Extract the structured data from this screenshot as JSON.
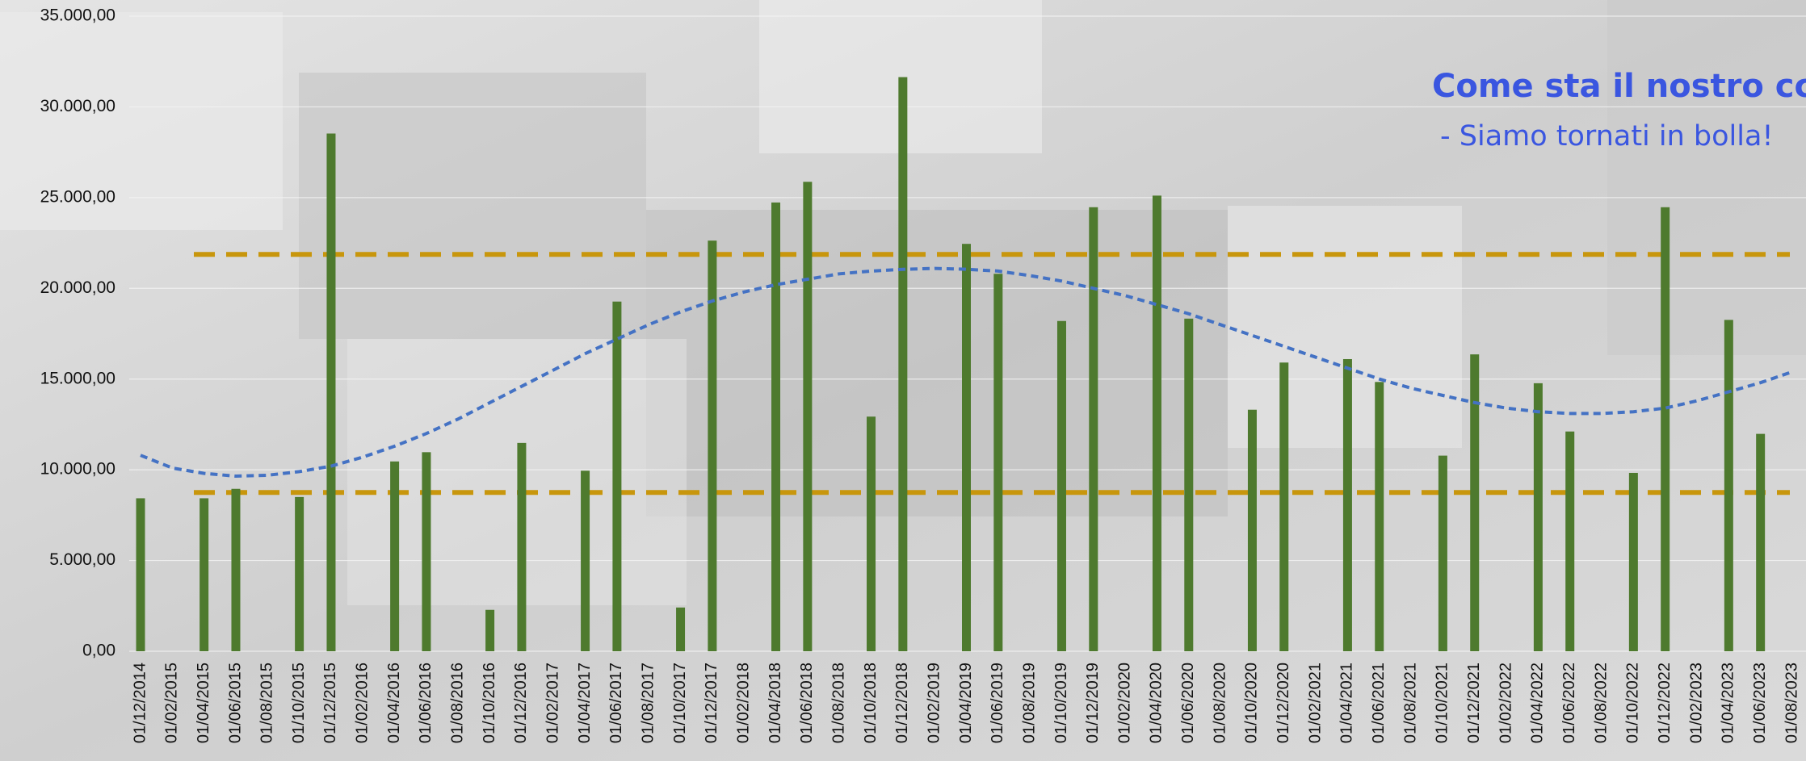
{
  "chart_data": {
    "type": "bar",
    "title": "Come sta il nostro cc?",
    "subtitle": "- Siamo tornati in bolla!",
    "categories": [
      "01/12/2014",
      "01/02/2015",
      "01/04/2015",
      "01/06/2015",
      "01/08/2015",
      "01/10/2015",
      "01/12/2015",
      "01/02/2016",
      "01/04/2016",
      "01/06/2016",
      "01/08/2016",
      "01/10/2016",
      "01/12/2016",
      "01/02/2017",
      "01/04/2017",
      "01/06/2017",
      "01/08/2017",
      "01/10/2017",
      "01/12/2017",
      "01/02/2018",
      "01/04/2018",
      "01/06/2018",
      "01/08/2018",
      "01/10/2018",
      "01/12/2018",
      "01/02/2019",
      "01/04/2019",
      "01/06/2019",
      "01/08/2019",
      "01/10/2019",
      "01/12/2019",
      "01/02/2020",
      "01/04/2020",
      "01/06/2020",
      "01/08/2020",
      "01/10/2020",
      "01/12/2020",
      "01/02/2021",
      "01/04/2021",
      "01/06/2021",
      "01/08/2021",
      "01/10/2021",
      "01/12/2021",
      "01/02/2022",
      "01/04/2022",
      "01/06/2022",
      "01/08/2022",
      "01/10/2022",
      "01/12/2022",
      "01/02/2023",
      "01/04/2023",
      "01/06/2023",
      "01/08/2023"
    ],
    "series": [
      {
        "type": "bar",
        "color": "#4e7a2e",
        "values": [
          8430,
          null,
          8430,
          8950,
          null,
          8500,
          28530,
          null,
          10460,
          10970,
          null,
          2280,
          11480,
          null,
          9950,
          19270,
          null,
          2410,
          22630,
          null,
          24730,
          25870,
          null,
          12930,
          31640,
          null,
          22450,
          20800,
          null,
          18200,
          24470,
          null,
          25110,
          18330,
          null,
          13310,
          15910,
          null,
          16100,
          14840,
          null,
          10780,
          16360,
          null,
          14770,
          12110,
          null,
          9830,
          24470,
          null,
          18260,
          11980,
          null
        ]
      },
      {
        "type": "trend",
        "color": "#4472c4",
        "values": [
          10800,
          10100,
          9800,
          9650,
          9700,
          9900,
          10200,
          10700,
          11300,
          12000,
          12800,
          13700,
          14600,
          15500,
          16400,
          17200,
          18000,
          18700,
          19300,
          19800,
          20200,
          20500,
          20800,
          20950,
          21050,
          21100,
          21050,
          20950,
          20700,
          20400,
          20000,
          19600,
          19100,
          18600,
          18000,
          17400,
          16800,
          16200,
          15600,
          15000,
          14500,
          14100,
          13700,
          13400,
          13200,
          13100,
          13100,
          13200,
          13400,
          13800,
          14300,
          14800,
          15400
        ]
      }
    ],
    "reference_lines": {
      "color": "#c8960c",
      "values": [
        21870,
        8750
      ]
    },
    "ylim": [
      0,
      35000
    ],
    "yticks": [
      {
        "value": 0,
        "label": "0,00"
      },
      {
        "value": 5000,
        "label": "5.000,00"
      },
      {
        "value": 10000,
        "label": "10.000,00"
      },
      {
        "value": 15000,
        "label": "15.000,00"
      },
      {
        "value": 20000,
        "label": "20.000,00"
      },
      {
        "value": 25000,
        "label": "25.000,00"
      },
      {
        "value": 30000,
        "label": "30.000,00"
      },
      {
        "value": 35000,
        "label": "35.000,00"
      }
    ],
    "grid": true
  }
}
